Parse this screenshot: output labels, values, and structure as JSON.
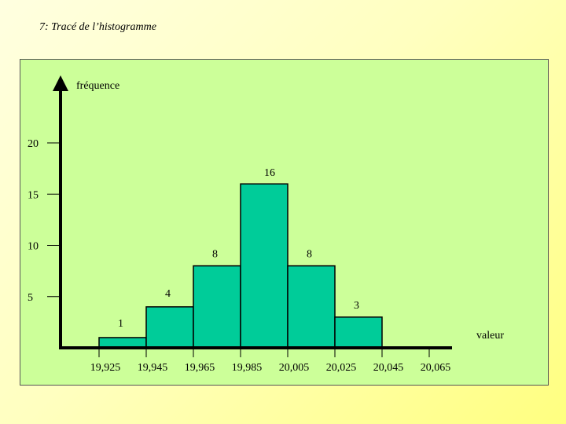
{
  "slide": {
    "title": "7: Tracé de l’histogramme"
  },
  "colors": {
    "panel_bg": "#ccff99",
    "bar_fill": "#00cc99",
    "axis": "#000000"
  },
  "chart_data": {
    "type": "bar",
    "title": "",
    "ylabel": "fréquence",
    "xlabel": "valeur",
    "bin_edges": [
      19.925,
      19.945,
      19.965,
      19.985,
      20.005,
      20.025,
      20.045,
      20.065
    ],
    "x_tick_labels": [
      "19,925",
      "19,945",
      "19,965",
      "19,985",
      "20,005",
      "20,025",
      "20,045",
      "20,065"
    ],
    "values": [
      1,
      4,
      8,
      16,
      8,
      3,
      0
    ],
    "data_labels": [
      "1",
      "4",
      "8",
      "16",
      "8",
      "3",
      ""
    ],
    "y_ticks": [
      5,
      10,
      15,
      20
    ],
    "y_tick_labels": [
      "5",
      "10",
      "15",
      "20"
    ],
    "ylim": [
      0,
      20
    ],
    "grid": false,
    "legend": "none"
  }
}
